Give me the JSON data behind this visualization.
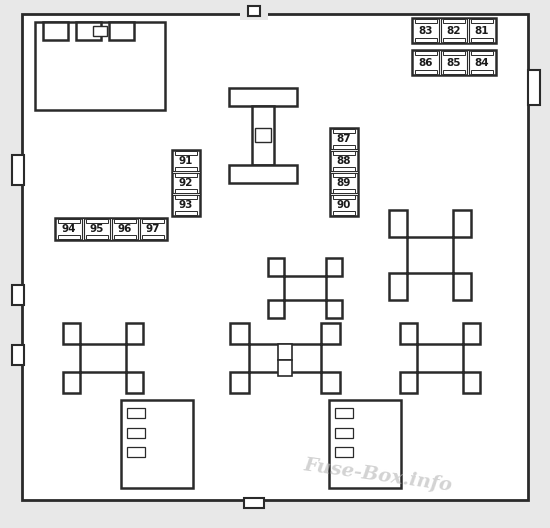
{
  "bg_color": "#e8e8e8",
  "box_color": "#ffffff",
  "line_color": "#2a2a2a",
  "text_color": "#1a1a1a",
  "watermark_color": "#bbbbbb",
  "watermark_text": "Fuse-Box.info"
}
